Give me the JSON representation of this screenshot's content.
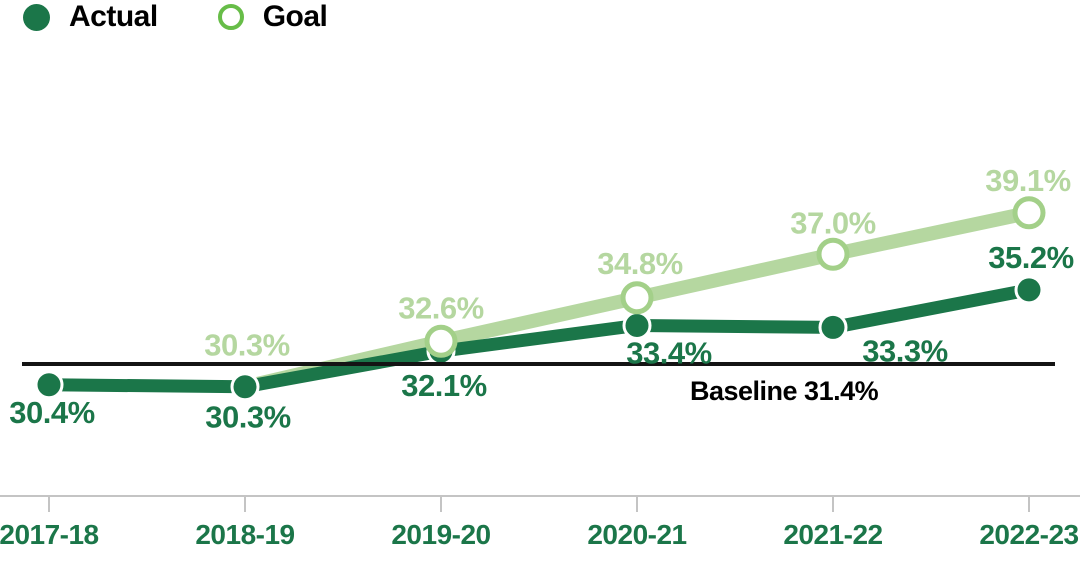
{
  "legend": {
    "items": [
      {
        "label": "Actual",
        "marker": "filled-circle"
      },
      {
        "label": "Goal",
        "marker": "open-circle"
      }
    ]
  },
  "colors": {
    "actual": "#1b7649",
    "actual_marker_ring": "#ffffff",
    "goal_line": "#b5d7a0",
    "goal_label": "#b5d7a0",
    "goal_marker_ring": "#a3d089",
    "legend_goal_ring": "#67bd48",
    "axis_line": "#c4c4c4",
    "axis_label": "#1b7649",
    "baseline": "#141414",
    "baseline_text": "#000000",
    "background": "#ffffff"
  },
  "chart_data": {
    "type": "line",
    "title": "",
    "categories": [
      "2017-18",
      "2018-19",
      "2019-20",
      "2020-21",
      "2021-22",
      "2022-23"
    ],
    "series": [
      {
        "name": "Actual",
        "marker": "filled-circle",
        "start_index": 0,
        "values": [
          30.4,
          30.3,
          32.1,
          33.4,
          33.3,
          35.2
        ],
        "point_labels": [
          "30.4%",
          "30.3%",
          "32.1%",
          "33.4%",
          "33.3%",
          "35.2%"
        ]
      },
      {
        "name": "Goal",
        "marker": "open-circle",
        "start_index": 1,
        "values": [
          30.3,
          32.6,
          34.8,
          37.0,
          39.1
        ],
        "point_labels": [
          "30.3%",
          "32.6%",
          "34.8%",
          "37.0%",
          "39.1%"
        ]
      }
    ],
    "baseline": {
      "value": 31.4,
      "label": "Baseline 31.4%"
    },
    "xlabel": "",
    "ylabel": "",
    "unit": "%",
    "grid": false,
    "legend_position": "top-left",
    "ylim": [
      28,
      41
    ],
    "label_offsets": {
      "Actual": [
        [
          3,
          38
        ],
        [
          3,
          41
        ],
        [
          3,
          45
        ],
        [
          32,
          38
        ],
        [
          72,
          34
        ],
        [
          2,
          -22
        ]
      ],
      "Goal": [
        [
          2,
          -31
        ],
        [
          0,
          -23
        ],
        [
          3,
          -24
        ],
        [
          0,
          -21
        ],
        [
          -1,
          -22
        ]
      ]
    }
  }
}
